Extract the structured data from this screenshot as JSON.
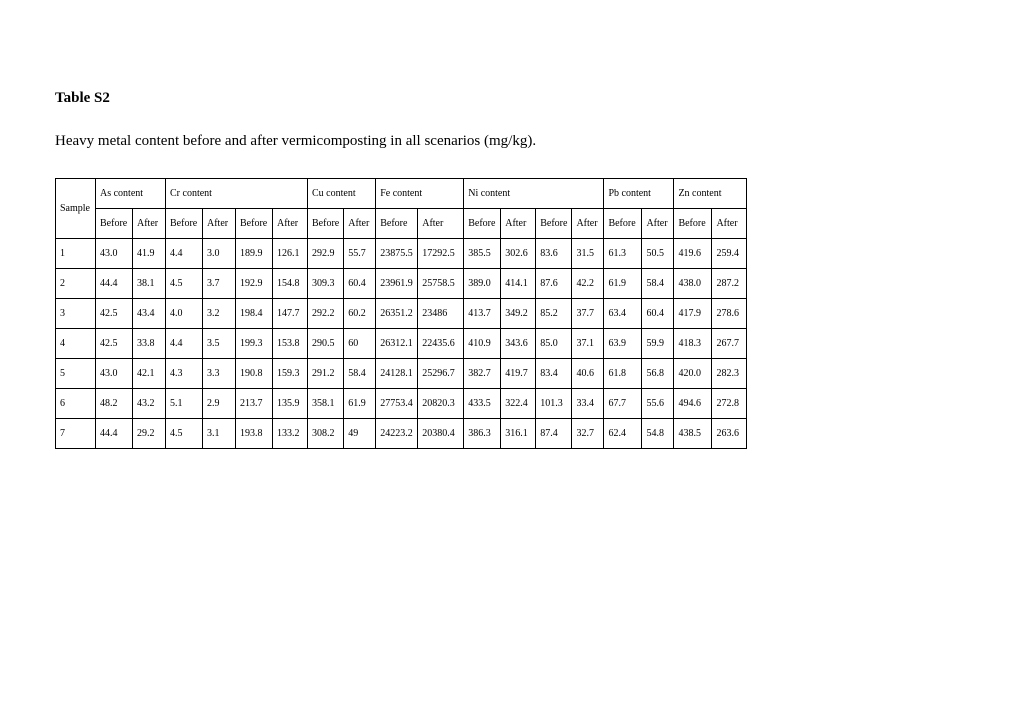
{
  "title": "Table S2",
  "caption": "Heavy metal content before and after vermicomposting in all scenarios (mg/kg).",
  "table": {
    "sample_header": "Sample",
    "groups": [
      {
        "label": "As content",
        "span": 2
      },
      {
        "label": "Cr content",
        "span": 4
      },
      {
        "label": "Cu content",
        "span": 2
      },
      {
        "label": "Fe content",
        "span": 2
      },
      {
        "label": "Ni content",
        "span": 4
      },
      {
        "label": "Pb content",
        "span": 2
      },
      {
        "label": "Zn content",
        "span": 2
      }
    ],
    "subheaders": [
      "Before",
      "After",
      "Before",
      "After",
      "Before",
      "After",
      "Before",
      "After",
      "Before",
      "After",
      "Before",
      "After",
      "Before",
      "After",
      "Before",
      "After",
      "Before",
      "After"
    ],
    "rows": [
      [
        "1",
        "43.0",
        "41.9",
        "4.4",
        "3.0",
        "189.9",
        "126.1",
        "292.9",
        "55.7",
        "23875.5",
        "17292.5",
        "385.5",
        "302.6",
        "83.6",
        "31.5",
        "61.3",
        "50.5",
        "419.6",
        "259.4"
      ],
      [
        "2",
        "44.4",
        "38.1",
        "4.5",
        "3.7",
        "192.9",
        "154.8",
        "309.3",
        "60.4",
        "23961.9",
        "25758.5",
        "389.0",
        "414.1",
        "87.6",
        "42.2",
        "61.9",
        "58.4",
        "438.0",
        "287.2"
      ],
      [
        "3",
        "42.5",
        "43.4",
        "4.0",
        "3.2",
        "198.4",
        "147.7",
        "292.2",
        "60.2",
        "26351.2",
        "23486",
        "413.7",
        "349.2",
        "85.2",
        "37.7",
        "63.4",
        "60.4",
        "417.9",
        "278.6"
      ],
      [
        "4",
        "42.5",
        "33.8",
        "4.4",
        "3.5",
        "199.3",
        "153.8",
        "290.5",
        "60",
        "26312.1",
        "22435.6",
        "410.9",
        "343.6",
        "85.0",
        "37.1",
        "63.9",
        "59.9",
        "418.3",
        "267.7"
      ],
      [
        "5",
        "43.0",
        "42.1",
        "4.3",
        "3.3",
        "190.8",
        "159.3",
        "291.2",
        "58.4",
        "24128.1",
        "25296.7",
        "382.7",
        "419.7",
        "83.4",
        "40.6",
        "61.8",
        "56.8",
        "420.0",
        "282.3"
      ],
      [
        "6",
        "48.2",
        "43.2",
        "5.1",
        "2.9",
        "213.7",
        "135.9",
        "358.1",
        "61.9",
        "27753.4",
        "20820.3",
        "433.5",
        "322.4",
        "101.3",
        "33.4",
        "67.7",
        "55.6",
        "494.6",
        "272.8"
      ],
      [
        "7",
        "44.4",
        "29.2",
        "4.5",
        "3.1",
        "193.8",
        "133.2",
        "308.2",
        "49",
        "24223.2",
        "20380.4",
        "386.3",
        "316.1",
        "87.4",
        "32.7",
        "62.4",
        "54.8",
        "438.5",
        "263.6"
      ]
    ],
    "col_classes": [
      "col-sample",
      "col-a",
      "col-b",
      "col-c",
      "col-d",
      "col-e",
      "col-f",
      "col-g",
      "col-h",
      "col-i",
      "col-j",
      "col-k",
      "col-l",
      "col-m",
      "col-n",
      "col-o",
      "col-p",
      "col-q",
      "col-r"
    ]
  }
}
